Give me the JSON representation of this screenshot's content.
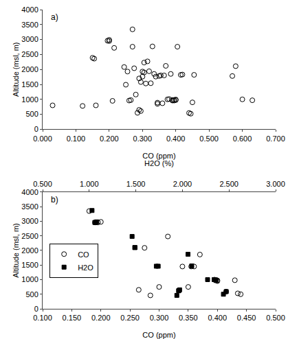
{
  "chart_data": [
    {
      "type": "scatter",
      "annotations": [
        "a)"
      ],
      "xlabel": "CO (ppm)",
      "ylabel": "Altitude (msl, m)",
      "xlim": [
        0.0,
        0.7
      ],
      "ylim": [
        0,
        4000
      ],
      "xticks": [
        {
          "value": 0.0,
          "label": "0.000"
        },
        {
          "value": 0.1,
          "label": "0.100"
        },
        {
          "value": 0.2,
          "label": "0.200"
        },
        {
          "value": 0.3,
          "label": "0.300"
        },
        {
          "value": 0.4,
          "label": "0.400"
        },
        {
          "value": 0.5,
          "label": "0.500"
        },
        {
          "value": 0.6,
          "label": "0.600"
        },
        {
          "value": 0.7,
          "label": "0.700"
        }
      ],
      "yticks": [
        0,
        500,
        1000,
        1500,
        2000,
        2500,
        3000,
        3500,
        4000
      ],
      "grid": false,
      "series": [
        {
          "color": "#000000",
          "marker": "circle-open",
          "x": [
            0.03,
            0.12,
            0.15,
            0.155,
            0.16,
            0.195,
            0.2,
            0.2,
            0.21,
            0.215,
            0.245,
            0.25,
            0.255,
            0.26,
            0.265,
            0.27,
            0.27,
            0.275,
            0.28,
            0.285,
            0.29,
            0.29,
            0.295,
            0.295,
            0.3,
            0.3,
            0.305,
            0.305,
            0.31,
            0.315,
            0.32,
            0.325,
            0.33,
            0.335,
            0.34,
            0.345,
            0.345,
            0.35,
            0.355,
            0.36,
            0.365,
            0.37,
            0.375,
            0.38,
            0.385,
            0.39,
            0.39,
            0.395,
            0.395,
            0.4,
            0.4,
            0.405,
            0.415,
            0.42,
            0.44,
            0.445,
            0.45,
            0.455,
            0.57,
            0.58,
            0.6,
            0.63
          ],
          "values": [
            800,
            780,
            2390,
            2360,
            800,
            2960,
            2950,
            2990,
            950,
            2720,
            2080,
            1490,
            1930,
            960,
            975,
            3340,
            2760,
            2040,
            1160,
            550,
            1700,
            650,
            1580,
            610,
            1760,
            1930,
            2230,
            1900,
            1530,
            2270,
            1940,
            1540,
            2770,
            1850,
            1760,
            890,
            850,
            1780,
            1800,
            870,
            1800,
            2120,
            1000,
            1010,
            1850,
            960,
            980,
            960,
            980,
            975,
            995,
            2760,
            1820,
            1830,
            545,
            520,
            900,
            1820,
            1780,
            2110,
            1000,
            970
          ]
        }
      ]
    },
    {
      "type": "scatter",
      "annotations": [
        "b)"
      ],
      "xlabel": "CO (ppm)",
      "x2label": "H2O (%)",
      "ylabel": "Altitude (msl, m)",
      "xlim": [
        0.1,
        0.5
      ],
      "x2lim": [
        0.5,
        3.0
      ],
      "ylim": [
        0,
        4000
      ],
      "xticks": [
        {
          "value": 0.1,
          "label": "0.100"
        },
        {
          "value": 0.15,
          "label": "0.150"
        },
        {
          "value": 0.2,
          "label": "0.200"
        },
        {
          "value": 0.25,
          "label": "0.250"
        },
        {
          "value": 0.3,
          "label": "0.300"
        },
        {
          "value": 0.35,
          "label": "0.350"
        },
        {
          "value": 0.4,
          "label": "0.400"
        },
        {
          "value": 0.45,
          "label": "0.450"
        },
        {
          "value": 0.5,
          "label": "0.500"
        }
      ],
      "x2ticks": [
        {
          "value": 0.5,
          "label": "0.500"
        },
        {
          "value": 1.0,
          "label": "1.000"
        },
        {
          "value": 1.5,
          "label": "1.500"
        },
        {
          "value": 2.0,
          "label": "2.000"
        },
        {
          "value": 2.5,
          "label": "2.500"
        },
        {
          "value": 3.0,
          "label": "3.000"
        }
      ],
      "yticks": [
        0,
        500,
        1000,
        1500,
        2000,
        2500,
        3000,
        3500,
        4000
      ],
      "grid": false,
      "legend": "upper left",
      "series": [
        {
          "name": "CO",
          "color": "#000000",
          "marker": "circle-open",
          "x": [
            0.18,
            0.19,
            0.195,
            0.2,
            0.265,
            0.275,
            0.285,
            0.3,
            0.315,
            0.34,
            0.35,
            0.355,
            0.36,
            0.37,
            0.395,
            0.398,
            0.4,
            0.4,
            0.415,
            0.43,
            0.435,
            0.44
          ],
          "values": [
            3350,
            2960,
            2960,
            2980,
            650,
            2090,
            460,
            750,
            2480,
            1450,
            750,
            1450,
            1450,
            1860,
            1000,
            990,
            950,
            975,
            590,
            980,
            530,
            500
          ]
        },
        {
          "name": "H2O",
          "axis": "x2",
          "color": "#000000",
          "marker": "square",
          "x": [
            1.03,
            1.07,
            1.06,
            1.08,
            1.46,
            1.49,
            1.49,
            1.72,
            1.74,
            1.94,
            1.97,
            1.96,
            1.96,
            2.06,
            2.27,
            2.34,
            2.36,
            2.1,
            2.44,
            2.47
          ],
          "values": [
            3370,
            2960,
            2960,
            2980,
            2480,
            2100,
            2100,
            1460,
            1460,
            460,
            650,
            620,
            620,
            1870,
            1000,
            1000,
            970,
            1470,
            500,
            590
          ]
        }
      ]
    }
  ]
}
